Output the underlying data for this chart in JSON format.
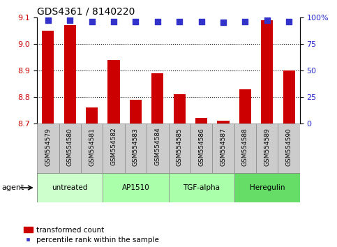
{
  "title": "GDS4361 / 8140220",
  "samples": [
    "GSM554579",
    "GSM554580",
    "GSM554581",
    "GSM554582",
    "GSM554583",
    "GSM554584",
    "GSM554585",
    "GSM554586",
    "GSM554587",
    "GSM554588",
    "GSM554589",
    "GSM554590"
  ],
  "bar_values": [
    9.05,
    9.07,
    8.76,
    8.94,
    8.79,
    8.89,
    8.81,
    8.72,
    8.71,
    8.83,
    9.09,
    8.9
  ],
  "percentile_values": [
    97,
    97,
    96,
    96,
    96,
    96,
    96,
    96,
    95,
    96,
    97,
    96
  ],
  "bar_color": "#cc0000",
  "dot_color": "#3333cc",
  "ylim_left": [
    8.7,
    9.1
  ],
  "ylim_right": [
    0,
    100
  ],
  "yticks_left": [
    8.7,
    8.8,
    8.9,
    9.0,
    9.1
  ],
  "yticks_right": [
    0,
    25,
    50,
    75,
    100
  ],
  "grid_values": [
    8.8,
    8.9,
    9.0
  ],
  "agents": [
    {
      "label": "untreated",
      "indices": [
        0,
        1,
        2
      ],
      "color": "#ccffcc"
    },
    {
      "label": "AP1510",
      "indices": [
        3,
        4,
        5
      ],
      "color": "#aaffaa"
    },
    {
      "label": "TGF-alpha",
      "indices": [
        6,
        7,
        8
      ],
      "color": "#aaffaa"
    },
    {
      "label": "Heregulin",
      "indices": [
        9,
        10,
        11
      ],
      "color": "#66dd66"
    }
  ],
  "legend_items": [
    "transformed count",
    "percentile rank within the sample"
  ],
  "agent_label": "agent",
  "background_color": "#ffffff",
  "tick_label_color_left": "#cc0000",
  "tick_label_color_right": "#2222cc",
  "bar_width": 0.55,
  "dot_marker": "s",
  "dot_size": 28,
  "sample_box_color": "#cccccc",
  "sample_box_border": "#888888"
}
